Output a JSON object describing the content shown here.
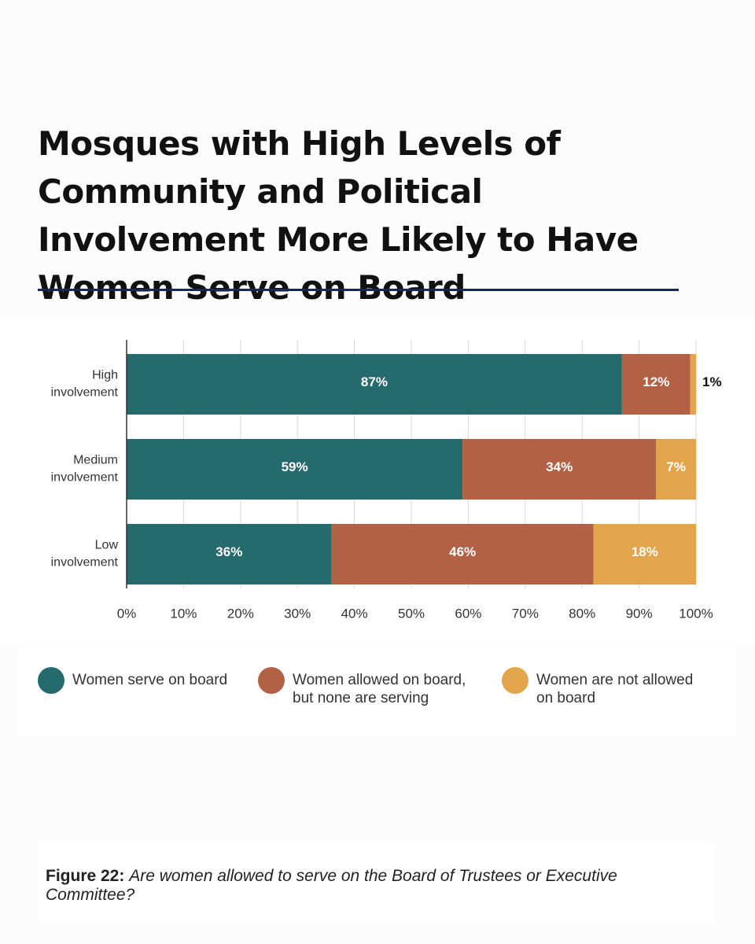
{
  "title": "Mosques with High Levels of Community and Political Involvement More Likely to Have Women Serve on Board",
  "colors": {
    "series_1": "#256b6e",
    "series_2": "#b36145",
    "series_3": "#e2a54c",
    "title_rule": "#17294d"
  },
  "chart_data": {
    "type": "bar",
    "orientation": "horizontal",
    "stacked": true,
    "categories": [
      "High\ninvolvement",
      "Medium\ninvolvement",
      "Low\ninvolvement"
    ],
    "series": [
      {
        "name": "Women serve on board",
        "values": [
          87,
          59,
          36
        ],
        "color": "#256b6e"
      },
      {
        "name": "Women allowed on board,\nbut none are serving",
        "values": [
          12,
          34,
          46
        ],
        "color": "#b36145"
      },
      {
        "name": "Women are not allowed\non board",
        "values": [
          1,
          7,
          18
        ],
        "color": "#e2a54c"
      }
    ],
    "data_labels": [
      [
        "87%",
        "12%",
        "1%"
      ],
      [
        "59%",
        "34%",
        "7%"
      ],
      [
        "36%",
        "46%",
        "18%"
      ]
    ],
    "x_ticks": [
      "0%",
      "10%",
      "20%",
      "30%",
      "40%",
      "50%",
      "60%",
      "70%",
      "80%",
      "90%",
      "100%"
    ],
    "xlim": [
      0,
      100
    ],
    "grid": true,
    "legend_position": "bottom"
  },
  "legend": {
    "items": [
      {
        "label": "Women serve on board",
        "color": "#256b6e"
      },
      {
        "label": "Women allowed on board,\nbut none are serving",
        "color": "#b36145"
      },
      {
        "label": "Women are not allowed\non board",
        "color": "#e2a54c"
      }
    ]
  },
  "caption": {
    "label": "Figure 22:",
    "text": "Are women allowed to serve on the Board of Trustees or Executive Committee?"
  }
}
